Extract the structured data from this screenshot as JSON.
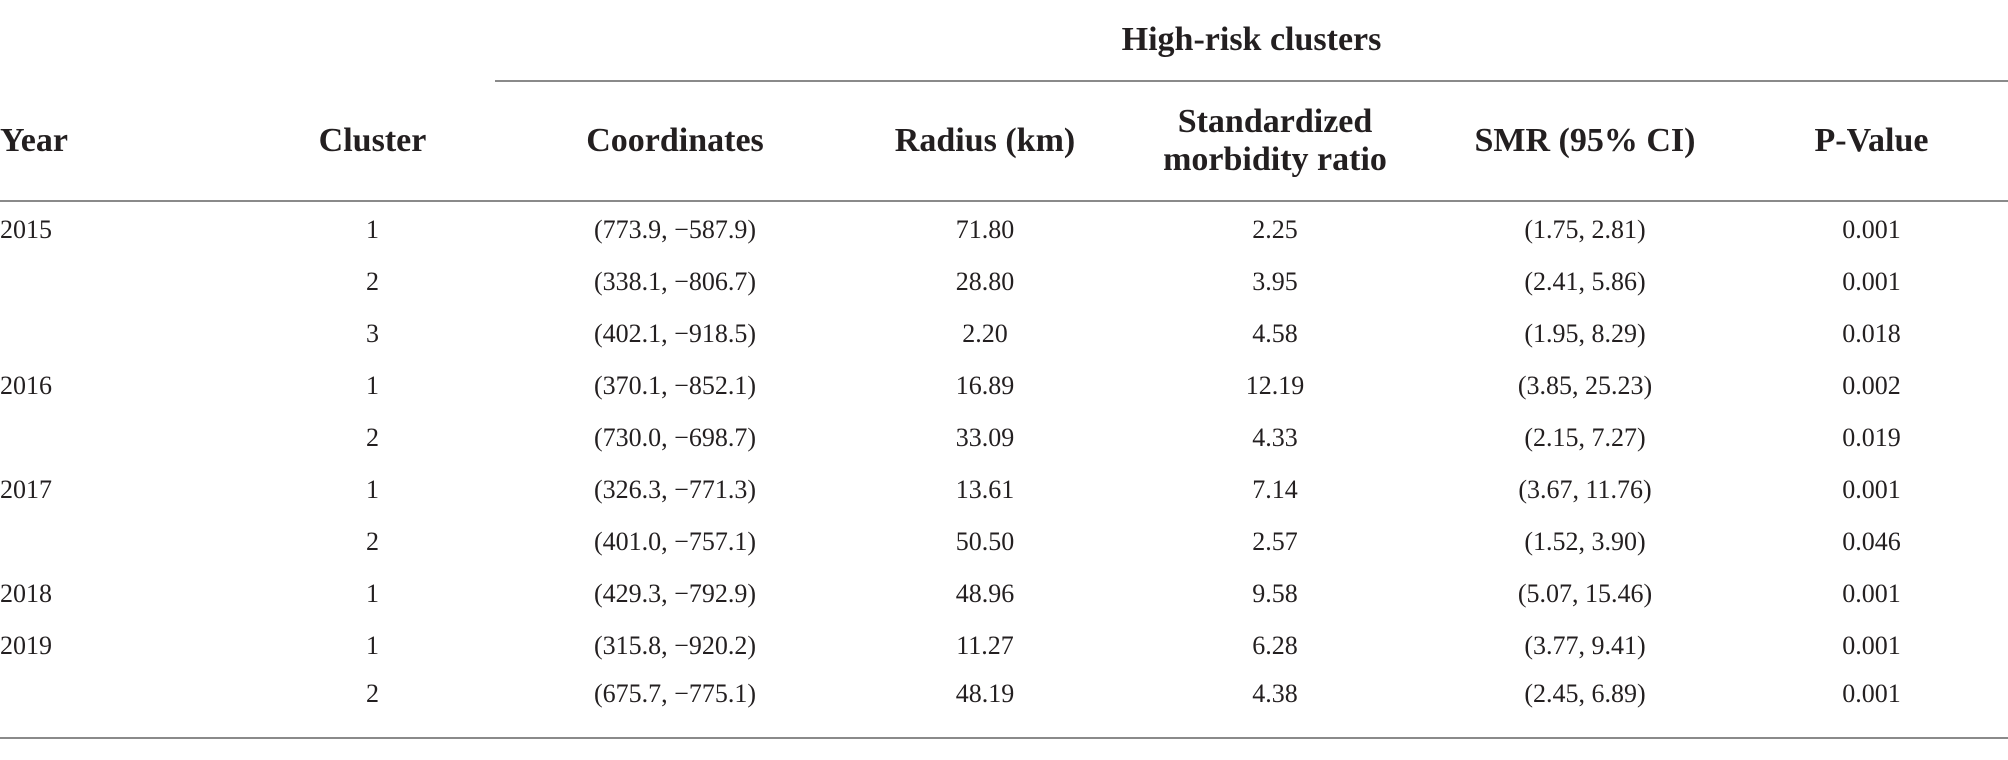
{
  "table": {
    "group_header": "High-risk clusters",
    "columns": {
      "year": "Year",
      "cluster": "Cluster",
      "coordinates": "Coordinates",
      "radius": "Radius (km)",
      "smr_line1": "Standardized",
      "smr_line2": "morbidity ratio",
      "ci": "SMR (95% CI)",
      "p": "P-Value"
    },
    "rows": [
      {
        "year": "2015",
        "cluster": "1",
        "coordinates": "(773.9, −587.9)",
        "radius": "71.80",
        "smr": "2.25",
        "ci": "(1.75, 2.81)",
        "p": "0.001"
      },
      {
        "year": "",
        "cluster": "2",
        "coordinates": "(338.1, −806.7)",
        "radius": "28.80",
        "smr": "3.95",
        "ci": "(2.41, 5.86)",
        "p": "0.001"
      },
      {
        "year": "",
        "cluster": "3",
        "coordinates": "(402.1, −918.5)",
        "radius": "2.20",
        "smr": "4.58",
        "ci": "(1.95, 8.29)",
        "p": "0.018"
      },
      {
        "year": "2016",
        "cluster": "1",
        "coordinates": "(370.1, −852.1)",
        "radius": "16.89",
        "smr": "12.19",
        "ci": "(3.85, 25.23)",
        "p": "0.002"
      },
      {
        "year": "",
        "cluster": "2",
        "coordinates": "(730.0, −698.7)",
        "radius": "33.09",
        "smr": "4.33",
        "ci": "(2.15, 7.27)",
        "p": "0.019"
      },
      {
        "year": "2017",
        "cluster": "1",
        "coordinates": "(326.3, −771.3)",
        "radius": "13.61",
        "smr": "7.14",
        "ci": "(3.67, 11.76)",
        "p": "0.001"
      },
      {
        "year": "",
        "cluster": "2",
        "coordinates": "(401.0, −757.1)",
        "radius": "50.50",
        "smr": "2.57",
        "ci": "(1.52, 3.90)",
        "p": "0.046"
      },
      {
        "year": "2018",
        "cluster": "1",
        "coordinates": "(429.3, −792.9)",
        "radius": "48.96",
        "smr": "9.58",
        "ci": "(5.07, 15.46)",
        "p": "0.001"
      },
      {
        "year": "2019",
        "cluster": "1",
        "coordinates": "(315.8, −920.2)",
        "radius": "11.27",
        "smr": "6.28",
        "ci": "(3.77, 9.41)",
        "p": "0.001"
      },
      {
        "year": "",
        "cluster": "2",
        "coordinates": "(675.7, −775.1)",
        "radius": "48.19",
        "smr": "4.38",
        "ci": "(2.45, 6.89)",
        "p": "0.001"
      }
    ]
  }
}
